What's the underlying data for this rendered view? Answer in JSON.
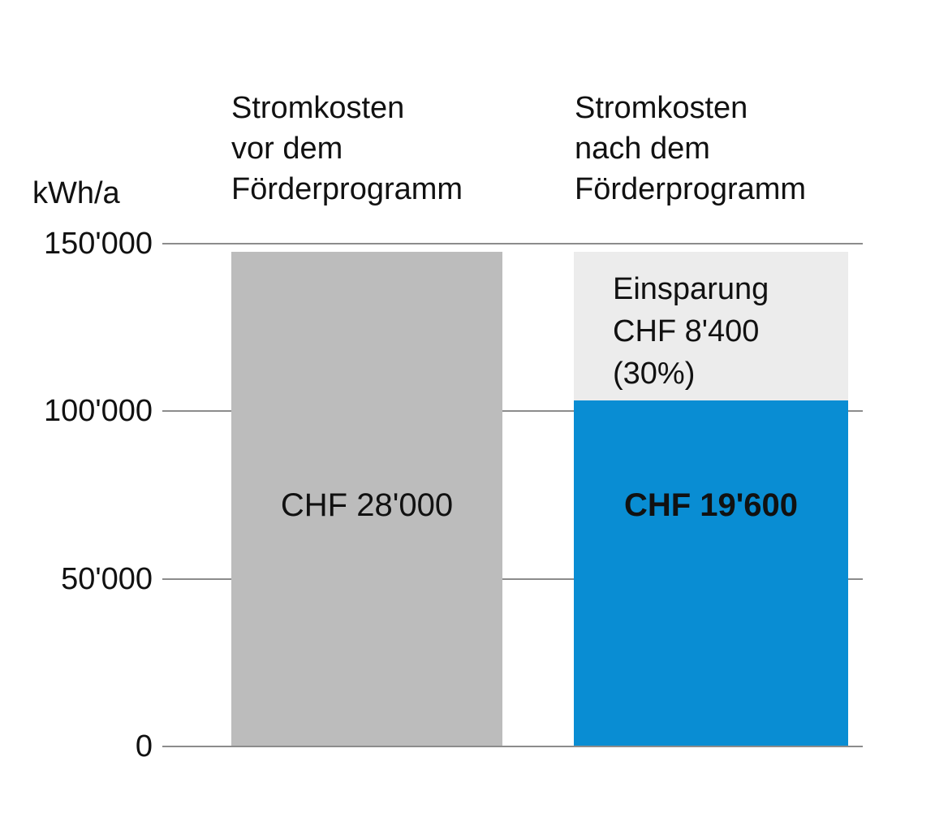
{
  "colors": {
    "bar_gray": "#bcbcbc",
    "saving_gray": "#ececec",
    "bar_blue": "#098dd3",
    "gridline": "#8c8c8c",
    "text": "#111111"
  },
  "chart_data": {
    "type": "bar",
    "unit_label": "kWh/a",
    "ylabel": "kWh/a",
    "ylim": [
      0,
      150000
    ],
    "grid": true,
    "ytick_values": [
      150000,
      100000,
      50000,
      0
    ],
    "ytick_labels": [
      "150'000",
      "100'000",
      "50'000",
      "0"
    ],
    "categories": [
      "Stromkosten vor dem Förderprogramm",
      "Stromkosten nach dem Förderprogramm"
    ],
    "categories_lines": [
      [
        "Stromkosten",
        "vor dem",
        "Förderprogramm"
      ],
      [
        "Stromkosten",
        "nach dem",
        "Förderprogramm"
      ]
    ],
    "bars": [
      {
        "name": "stromkosten-vor-foerderprogramm",
        "total_kwh": 147500,
        "segments": [
          {
            "name": "stromkosten-vor",
            "value_kwh": 147500,
            "label": "CHF 28'000",
            "label_bold": false
          }
        ]
      },
      {
        "name": "stromkosten-nach-foerderprogramm",
        "total_kwh": 147500,
        "segments": [
          {
            "name": "einsparung",
            "value_kwh": 44250,
            "label": "Einsparung CHF 8'400 (30%)",
            "label_lines": [
              "Einsparung",
              "CHF 8'400",
              "(30%)"
            ],
            "label_bold": false
          },
          {
            "name": "stromkosten-nach",
            "value_kwh": 103250,
            "label": "CHF 19'600",
            "label_bold": true
          }
        ]
      }
    ]
  }
}
